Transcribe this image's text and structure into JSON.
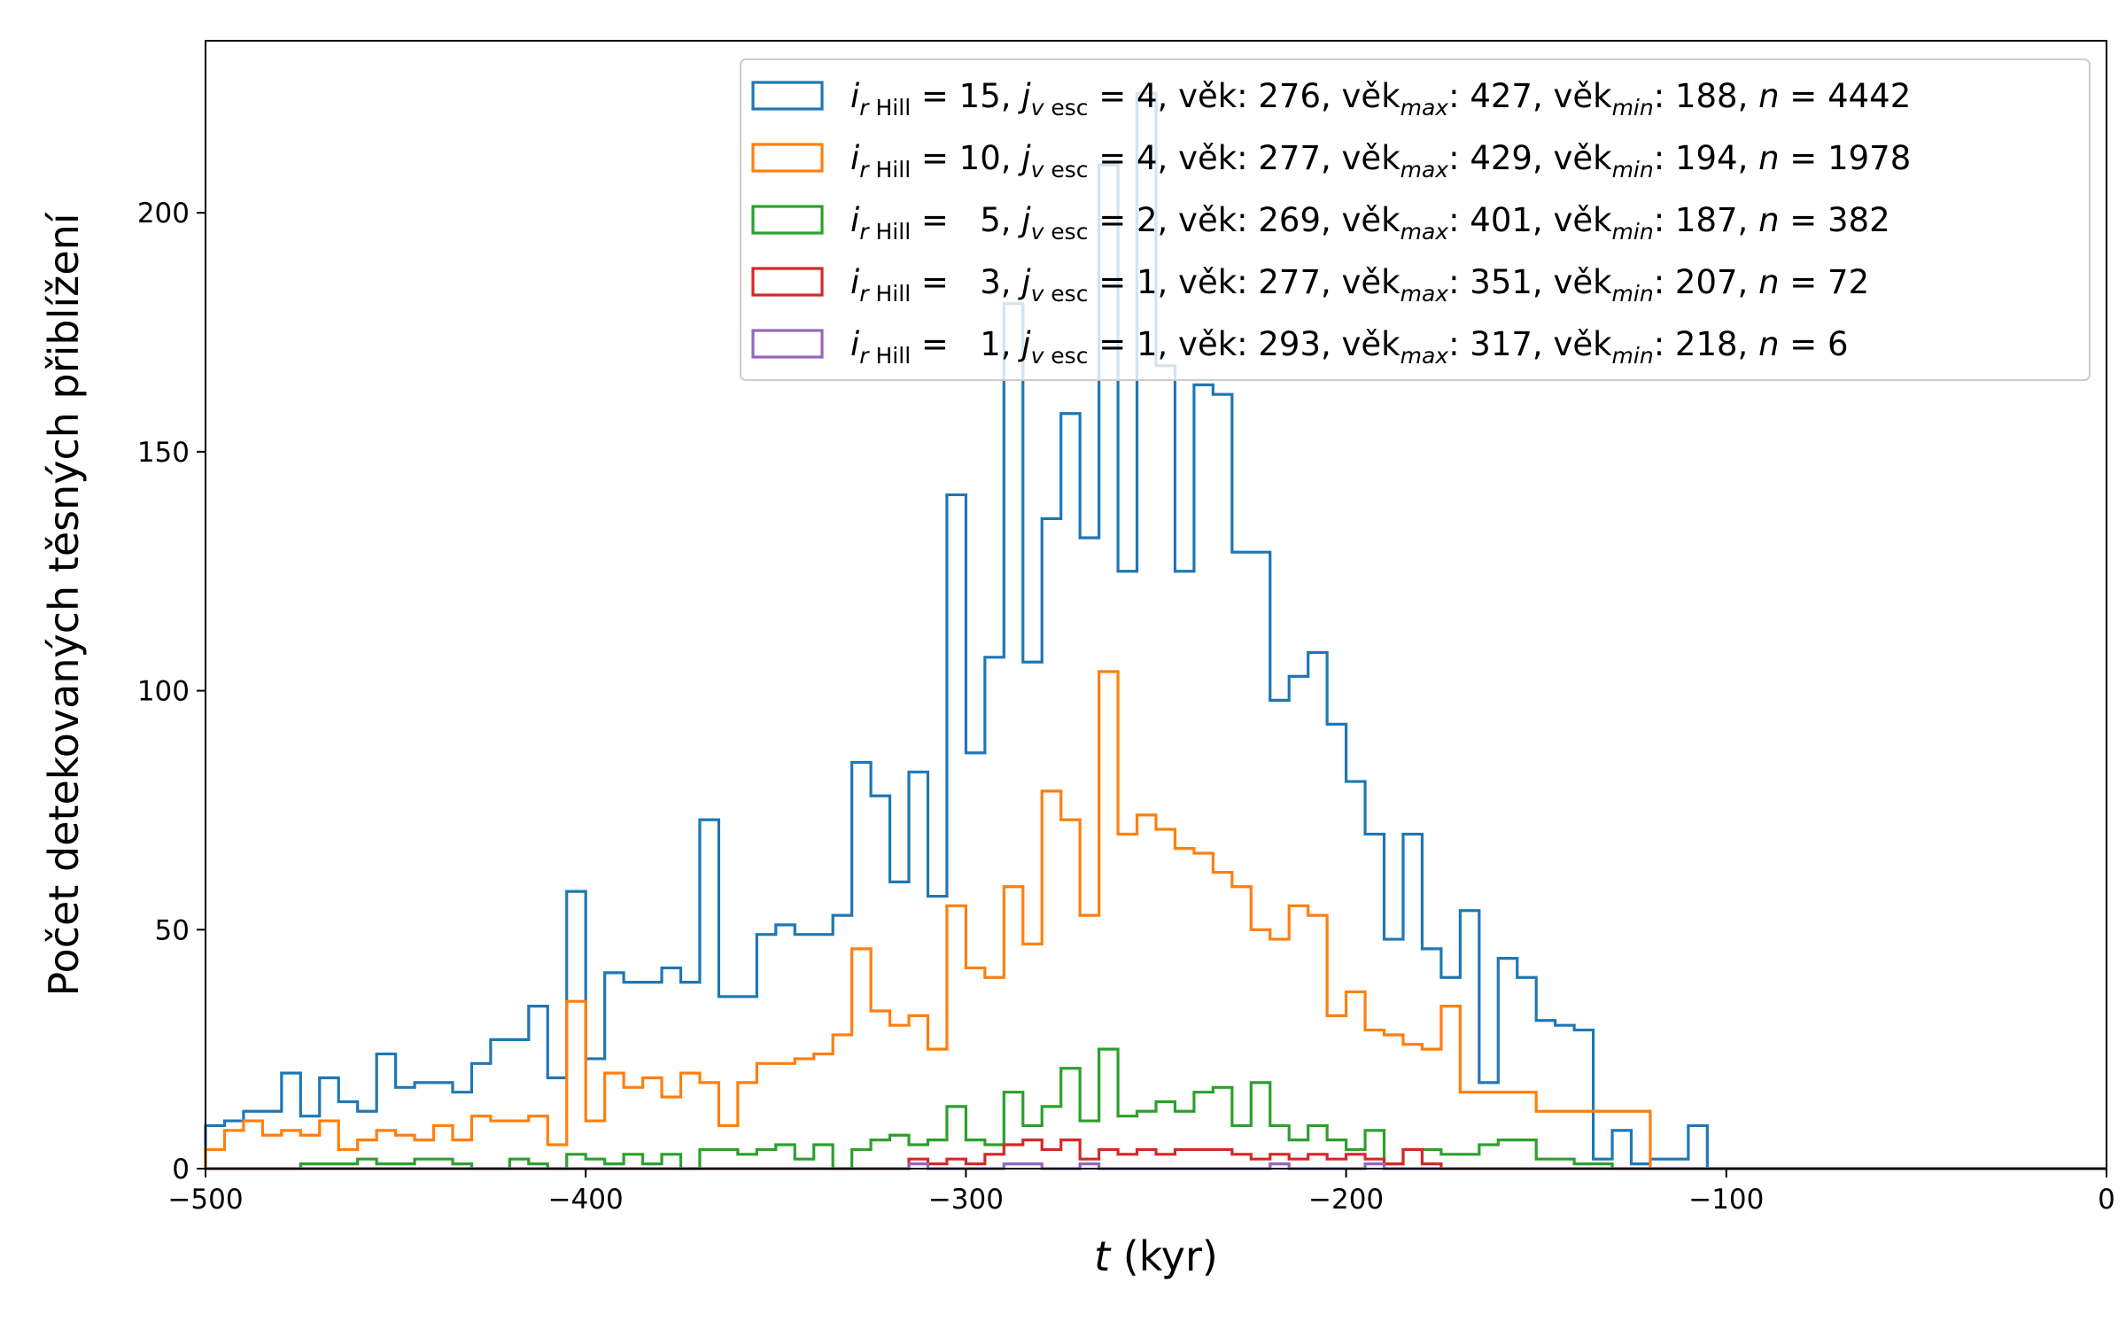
{
  "chart_data": {
    "type": "histogram-step",
    "title": "",
    "xlabel_italic": "t",
    "xlabel_rest": " (kyr)",
    "ylabel": "Počet detekovaných těsných přiblížení",
    "xlim": [
      -500,
      0
    ],
    "ylim": [
      0,
      236
    ],
    "bin_width": 5,
    "bin_start": -500,
    "xticks": [
      -500,
      -400,
      -300,
      -200,
      -100,
      0
    ],
    "xtick_labels": [
      "−500",
      "−400",
      "−300",
      "−200",
      "−100",
      "0"
    ],
    "yticks": [
      0,
      50,
      100,
      150,
      200
    ],
    "ytick_labels": [
      "0",
      "50",
      "100",
      "150",
      "200"
    ],
    "grid": false,
    "legend_placement": "upper-right",
    "series": [
      {
        "name": "i_rHill = 15, j_vesc = 4",
        "color": "#1f77b4",
        "legend": {
          "i": "15",
          "j": "4",
          "vek": "276",
          "vek_max": "427",
          "vek_min": "188",
          "n": "4442"
        },
        "values": [
          9,
          10,
          12,
          12,
          20,
          11,
          19,
          14,
          12,
          24,
          17,
          18,
          18,
          16,
          22,
          27,
          27,
          34,
          19,
          58,
          23,
          41,
          39,
          39,
          42,
          39,
          73,
          36,
          36,
          49,
          51,
          49,
          49,
          53,
          85,
          78,
          60,
          83,
          57,
          141,
          87,
          107,
          181,
          106,
          136,
          158,
          132,
          210,
          125,
          225,
          168,
          125,
          164,
          162,
          129,
          129,
          98,
          103,
          108,
          93,
          81,
          70,
          48,
          70,
          46,
          40,
          54,
          18,
          44,
          40,
          31,
          30,
          29,
          2,
          8,
          1,
          2,
          2,
          9,
          0,
          0,
          0,
          0,
          0,
          0,
          0,
          0,
          0,
          0,
          0,
          0,
          0,
          0,
          0,
          0,
          0,
          0,
          0,
          0,
          0
        ]
      },
      {
        "name": "i_rHill = 10, j_vesc = 4",
        "color": "#ff7f0e",
        "legend": {
          "i": "10",
          "j": "4",
          "vek": "277",
          "vek_max": "429",
          "vek_min": "194",
          "n": "1978"
        },
        "values": [
          4,
          8,
          10,
          7,
          8,
          7,
          10,
          4,
          6,
          8,
          7,
          6,
          9,
          6,
          11,
          10,
          10,
          11,
          5,
          35,
          10,
          20,
          17,
          19,
          15,
          20,
          18,
          9,
          18,
          22,
          22,
          23,
          24,
          28,
          46,
          33,
          30,
          32,
          25,
          55,
          42,
          40,
          59,
          47,
          79,
          73,
          53,
          104,
          70,
          74,
          71,
          67,
          66,
          62,
          59,
          50,
          48,
          55,
          53,
          32,
          37,
          29,
          28,
          26,
          25,
          34,
          16,
          16,
          16,
          16,
          12,
          12,
          12,
          12,
          12,
          12,
          0,
          0,
          0,
          0,
          0,
          0,
          0,
          0,
          0,
          0,
          0,
          0,
          0,
          0,
          0,
          0,
          0,
          0,
          0,
          0,
          0,
          0,
          0,
          0
        ]
      },
      {
        "name": "i_rHill = 5, j_vesc = 2",
        "color": "#2ca02c",
        "legend": {
          "i": "5",
          "j": "2",
          "vek": "269",
          "vek_max": "401",
          "vek_min": "187",
          "n": "382"
        },
        "values": [
          0,
          0,
          0,
          0,
          0,
          1,
          1,
          1,
          2,
          1,
          1,
          2,
          2,
          1,
          0,
          0,
          2,
          1,
          0,
          3,
          2,
          1,
          3,
          1,
          3,
          0,
          4,
          4,
          3,
          4,
          5,
          2,
          5,
          0,
          4,
          6,
          7,
          5,
          6,
          13,
          6,
          5,
          16,
          9,
          13,
          21,
          10,
          25,
          11,
          12,
          14,
          12,
          16,
          17,
          9,
          18,
          9,
          6,
          9,
          6,
          4,
          8,
          1,
          4,
          4,
          3,
          3,
          5,
          6,
          6,
          2,
          2,
          1,
          1,
          0,
          0,
          0,
          0,
          0,
          0,
          0,
          0,
          0,
          0,
          0,
          0,
          0,
          0,
          0,
          0,
          0,
          0,
          0,
          0,
          0,
          0,
          0,
          0,
          0,
          0
        ]
      },
      {
        "name": "i_rHill = 3, j_vesc = 1",
        "color": "#d62728",
        "legend": {
          "i": "3",
          "j": "1",
          "vek": "277",
          "vek_max": "351",
          "vek_min": "207",
          "n": "72"
        },
        "values": [
          0,
          0,
          0,
          0,
          0,
          0,
          0,
          0,
          0,
          0,
          0,
          0,
          0,
          0,
          0,
          0,
          0,
          0,
          0,
          0,
          0,
          0,
          0,
          0,
          0,
          0,
          0,
          0,
          0,
          0,
          0,
          0,
          0,
          0,
          0,
          0,
          0,
          2,
          1,
          2,
          1,
          3,
          5,
          6,
          4,
          6,
          2,
          4,
          3,
          4,
          3,
          4,
          4,
          4,
          3,
          2,
          3,
          2,
          3,
          2,
          3,
          2,
          1,
          4,
          1,
          0,
          0,
          0,
          0,
          0,
          0,
          0,
          0,
          0,
          0,
          0,
          0,
          0,
          0,
          0,
          0,
          0,
          0,
          0,
          0,
          0,
          0,
          0,
          0,
          0,
          0,
          0,
          0,
          0,
          0,
          0,
          0,
          0,
          0,
          0
        ]
      },
      {
        "name": "i_rHill = 1, j_vesc = 1",
        "color": "#9467bd",
        "legend": {
          "i": "1",
          "j": "1",
          "vek": "293",
          "vek_max": "317",
          "vek_min": "218",
          "n": "6"
        },
        "values": [
          0,
          0,
          0,
          0,
          0,
          0,
          0,
          0,
          0,
          0,
          0,
          0,
          0,
          0,
          0,
          0,
          0,
          0,
          0,
          0,
          0,
          0,
          0,
          0,
          0,
          0,
          0,
          0,
          0,
          0,
          0,
          0,
          0,
          0,
          0,
          0,
          0,
          1,
          0,
          0,
          0,
          0,
          1,
          1,
          0,
          0,
          1,
          0,
          0,
          0,
          0,
          0,
          0,
          0,
          0,
          0,
          1,
          0,
          0,
          0,
          0,
          1,
          0,
          0,
          0,
          0,
          0,
          0,
          0,
          0,
          0,
          0,
          0,
          0,
          0,
          0,
          0,
          0,
          0,
          0,
          0,
          0,
          0,
          0,
          0,
          0,
          0,
          0,
          0,
          0,
          0,
          0,
          0,
          0,
          0,
          0,
          0,
          0,
          0,
          0
        ]
      }
    ]
  }
}
